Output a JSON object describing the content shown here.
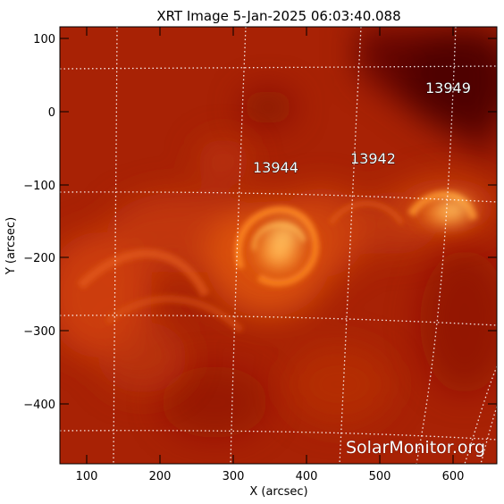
{
  "title": "XRT Image  5-Jan-2025 06:03:40.088",
  "watermark": "SolarMonitor.org",
  "axes": {
    "xlabel": "X (arcsec)",
    "ylabel": "Y (arcsec)",
    "xticks": [
      "100",
      "200",
      "300",
      "400",
      "500",
      "600"
    ],
    "yticks": [
      "100",
      "0",
      "−100",
      "−200",
      "−300",
      "−400"
    ]
  },
  "active_regions": [
    {
      "label": "13944"
    },
    {
      "label": "13942"
    },
    {
      "label": "13949"
    }
  ],
  "colors": {
    "background": "#ffffff",
    "image_dark": "#7a0f02",
    "image_base": "#b22a07",
    "image_bright": "#ff9a2e",
    "grid": "#ffffff"
  }
}
